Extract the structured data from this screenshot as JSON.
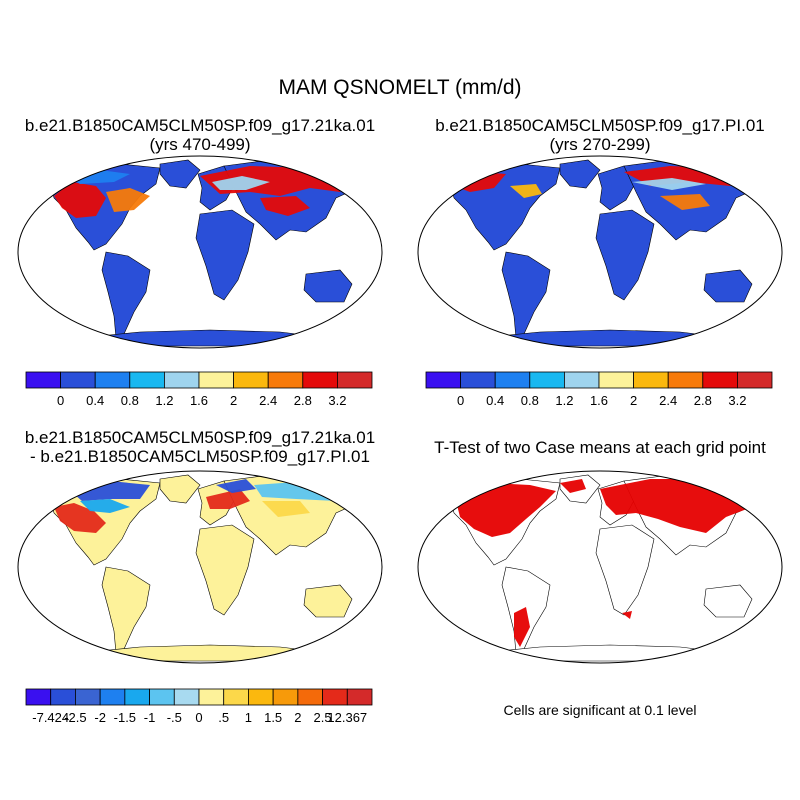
{
  "title": "MAM QSNOMELT (mm/d)",
  "panels": [
    {
      "id": "case1",
      "title_line1": "b.e21.B1850CAM5CLM50SP.f09_g17.21ka.01",
      "title_line2": "(yrs 470-499)"
    },
    {
      "id": "case2",
      "title_line1": "b.e21.B1850CAM5CLM50SP.f09_g17.PI.01",
      "title_line2": "(yrs 270-299)"
    },
    {
      "id": "diff",
      "title_line1": "b.e21.B1850CAM5CLM50SP.f09_g17.21ka.01",
      "title_line2": "- b.e21.B1850CAM5CLM50SP.f09_g17.PI.01"
    },
    {
      "id": "ttest",
      "title_line1": "T-Test of two Case means at each grid point",
      "title_line2": ""
    }
  ],
  "colorbar_case": {
    "colors": [
      "#3a10f0",
      "#2a4fd8",
      "#1e80f0",
      "#19b8f0",
      "#9fd4ee",
      "#fdf29a",
      "#fbb80e",
      "#f77a0a",
      "#e40a0a",
      "#d42a2a"
    ],
    "labels": [
      "0",
      "0.4",
      "0.8",
      "1.2",
      "1.6",
      "2",
      "2.4",
      "2.8",
      "3.2"
    ]
  },
  "colorbar_diff": {
    "colors": [
      "#3a10f0",
      "#2a4fd8",
      "#3a64d2",
      "#1e80f0",
      "#19a8ee",
      "#5cc4f0",
      "#a8daf0",
      "#fdf29a",
      "#fcd84a",
      "#fbb80e",
      "#f79a0a",
      "#f46a0a",
      "#e42a1a",
      "#d42a2a"
    ],
    "labels": [
      "-7.424",
      "-2.5",
      "-2",
      "-1.5",
      "-1",
      "-.5",
      "0",
      ".5",
      "1",
      "1.5",
      "2",
      "2.5",
      "12.367"
    ]
  },
  "significance_note": "Cells are significant at 0.1 level",
  "significance_color": "#e60000"
}
